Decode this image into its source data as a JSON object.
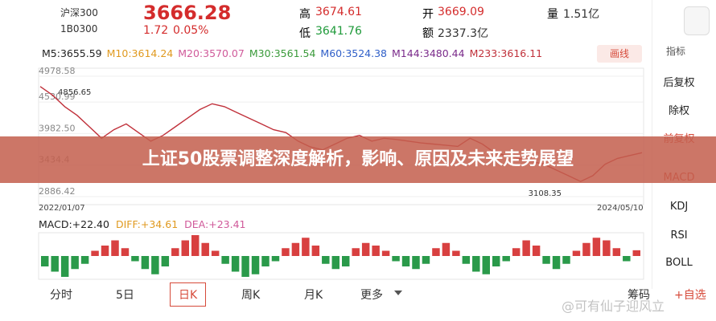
{
  "header": {
    "name": "沪深300",
    "code": "1B0300",
    "price": "3666.28",
    "change": "1.72",
    "change_pct": "0.05%",
    "high_label": "高",
    "high": "3674.61",
    "low_label": "低",
    "low": "3641.76",
    "open_label": "开",
    "open": "3669.09",
    "amount_label": "额",
    "amount": "2337.3亿",
    "volume_label": "量",
    "volume": "1.51亿"
  },
  "ma": [
    {
      "text": "M5:3655.59",
      "color": "#222222"
    },
    {
      "text": "M10:3614.24",
      "color": "#e09a20"
    },
    {
      "text": "M20:3570.07",
      "color": "#d05a9a"
    },
    {
      "text": "M30:3561.54",
      "color": "#3a9a3a"
    },
    {
      "text": "M60:3524.38",
      "color": "#2f5fc8"
    },
    {
      "text": "M144:3480.44",
      "color": "#7a2a8a"
    },
    {
      "text": "M233:3616.11",
      "color": "#c0303a"
    }
  ],
  "draw_button": "画线",
  "indicator_button": "指标",
  "chart": {
    "yticks": [
      4978.58,
      4530.99,
      {
        "value": 3982.5,
        "label": "3982.50"
      },
      3434.4,
      2886.42
    ],
    "high_note": "4856.65",
    "low_note": "3108.35",
    "start_date": "2022/01/07",
    "end_date": "2024/05/10",
    "closes": [
      4800,
      4650,
      4450,
      4300,
      4100,
      3900,
      4050,
      4150,
      4000,
      3850,
      3950,
      4100,
      4250,
      4400,
      4500,
      4450,
      4350,
      4250,
      4150,
      4050,
      4000,
      3850,
      3750,
      3700,
      3800,
      3900,
      3950,
      3850,
      3900,
      3880,
      3850,
      3820,
      3800,
      3780,
      3760,
      3900,
      3800,
      3650,
      3600,
      3550,
      3500,
      3450,
      3350,
      3250,
      3150,
      3250,
      3450,
      3550,
      3600,
      3650
    ]
  },
  "macd": {
    "labels": [
      {
        "text": "MACD:+22.40",
        "color": "#222222"
      },
      {
        "text": "DIFF:+34.61",
        "color": "#e09a20"
      },
      {
        "text": "DEA:+23.41",
        "color": "#d05a9a"
      }
    ],
    "bars": [
      -40,
      -60,
      -80,
      -50,
      -30,
      20,
      40,
      60,
      30,
      -20,
      -50,
      -70,
      -40,
      30,
      60,
      80,
      50,
      20,
      -30,
      -60,
      -80,
      -70,
      -40,
      -20,
      30,
      50,
      70,
      40,
      -30,
      -50,
      -40,
      30,
      50,
      40,
      20,
      -20,
      -40,
      -50,
      -30,
      30,
      50,
      20,
      -30,
      -60,
      -70,
      -40,
      -20,
      30,
      60,
      40,
      -30,
      -50,
      -30,
      20,
      50,
      70,
      60,
      30,
      -20,
      22
    ]
  },
  "side": [
    "后复权",
    "除权",
    "前复权",
    "MACD",
    "KDJ",
    "RSI",
    "BOLL"
  ],
  "side_active": [
    2,
    3
  ],
  "tabs": [
    "分时",
    "5日",
    "日K",
    "周K",
    "月K",
    "更多"
  ],
  "selected_tab": 2,
  "chips": "筹码",
  "add": "+自选",
  "banner": "上证50股票调整深度解析，影响、原因及未来走势展望",
  "watermark": "@可有仙子迎风立"
}
